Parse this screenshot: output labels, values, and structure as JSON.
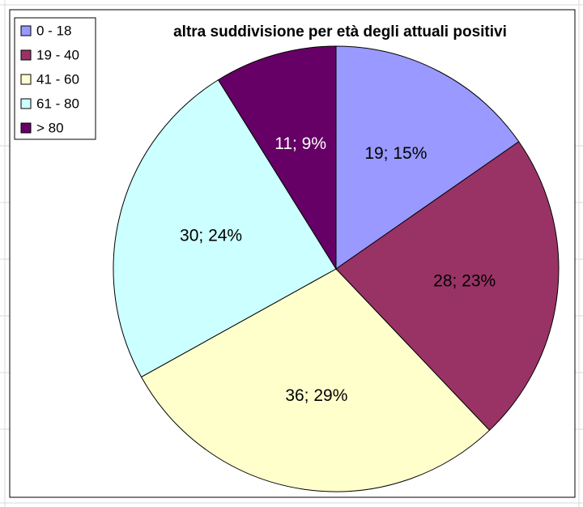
{
  "chart_data": {
    "type": "pie",
    "title": "altra suddivisione per età degli attuali positivi",
    "categories": [
      "0 - 18",
      "19 - 40",
      "41 - 60",
      "61 - 80",
      "> 80"
    ],
    "values": [
      19,
      28,
      36,
      30,
      11
    ],
    "value_labels": [
      "19; 15%",
      "28; 23%",
      "36; 29%",
      "30; 24%",
      "11; 9%"
    ],
    "colors": [
      "#9999ff",
      "#993366",
      "#ffffcc",
      "#ccffff",
      "#660066"
    ],
    "legend": "top-left"
  }
}
